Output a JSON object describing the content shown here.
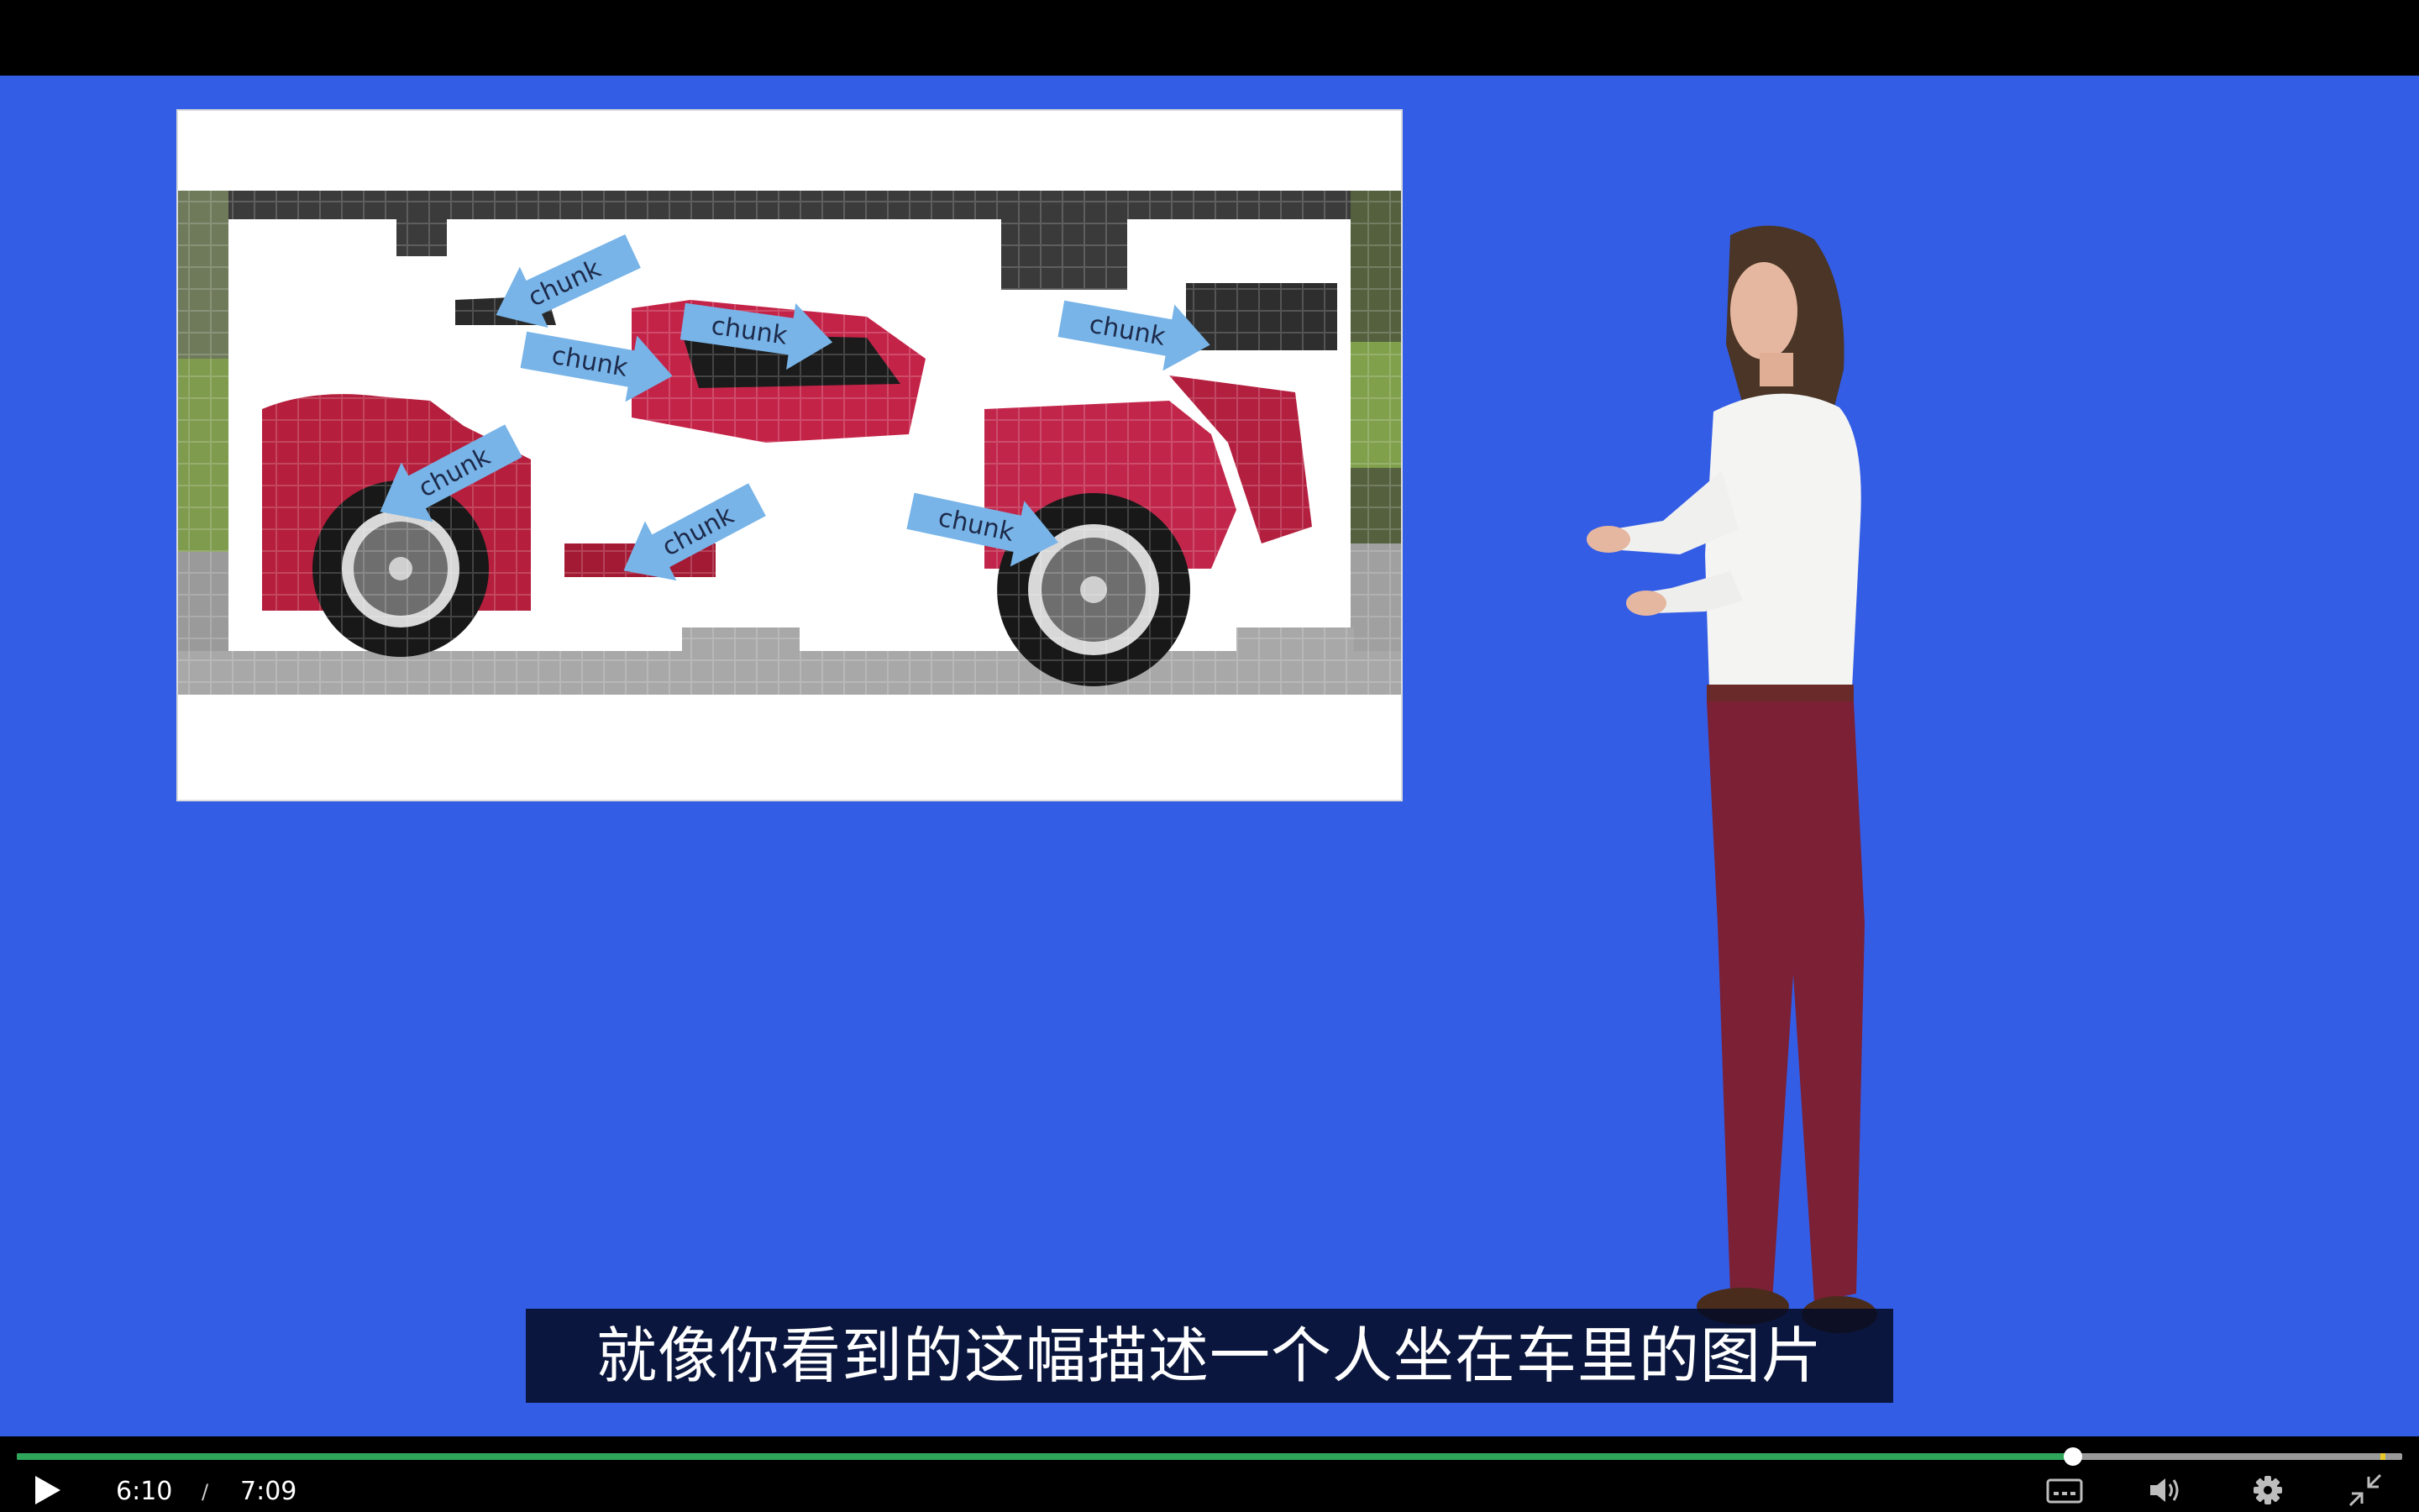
{
  "slide": {
    "arrows": [
      {
        "label": "chunk"
      },
      {
        "label": "chunk"
      },
      {
        "label": "chunk"
      },
      {
        "label": "chunk"
      },
      {
        "label": "chunk"
      },
      {
        "label": "chunk"
      },
      {
        "label": "chunk"
      }
    ]
  },
  "subtitle": {
    "text": "就像你看到的这幅描述一个人坐在车里的图片"
  },
  "controls": {
    "current_time": "6:10",
    "separator": "/",
    "total_time": "7:09",
    "progress": 0.862,
    "icons": {
      "play": "play-icon",
      "captions": "closed-captions-icon",
      "volume": "volume-icon",
      "settings": "gear-icon",
      "exit_fullscreen": "exit-fullscreen-icon"
    }
  },
  "colors": {
    "background": "#345de6",
    "progress_fill": "#2fa55a",
    "arrow": "#78b4e8"
  }
}
